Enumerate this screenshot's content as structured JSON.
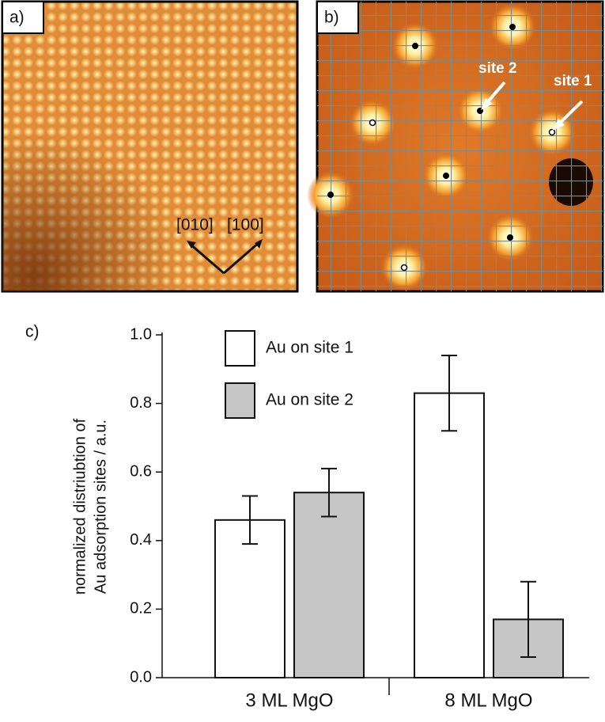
{
  "panels": {
    "a": {
      "label": "a)",
      "directions": [
        "[010]",
        "[100]"
      ]
    },
    "b": {
      "label": "b)",
      "annotations": [
        "site 2",
        "site 1"
      ]
    },
    "c": {
      "label": "c)"
    }
  },
  "chart_data": {
    "type": "bar",
    "y_label": [
      "normalized distriubtion of",
      "Au adsorption sites / a.u."
    ],
    "categories": [
      "3 ML MgO",
      "8 ML MgO"
    ],
    "series": [
      {
        "name": "Au on site 1",
        "color": "#ffffff",
        "values": [
          0.46,
          0.83
        ],
        "errors": [
          0.07,
          0.11
        ]
      },
      {
        "name": "Au on site 2",
        "color": "#c6c6c6",
        "values": [
          0.54,
          0.17
        ],
        "errors": [
          0.07,
          0.11
        ]
      }
    ],
    "ylim": [
      0,
      1
    ],
    "yticks": [
      {
        "value": 0,
        "label": "0.0"
      },
      0.2,
      0.4,
      0.6,
      0.8,
      {
        "value": 1,
        "label": "1.0"
      }
    ]
  }
}
